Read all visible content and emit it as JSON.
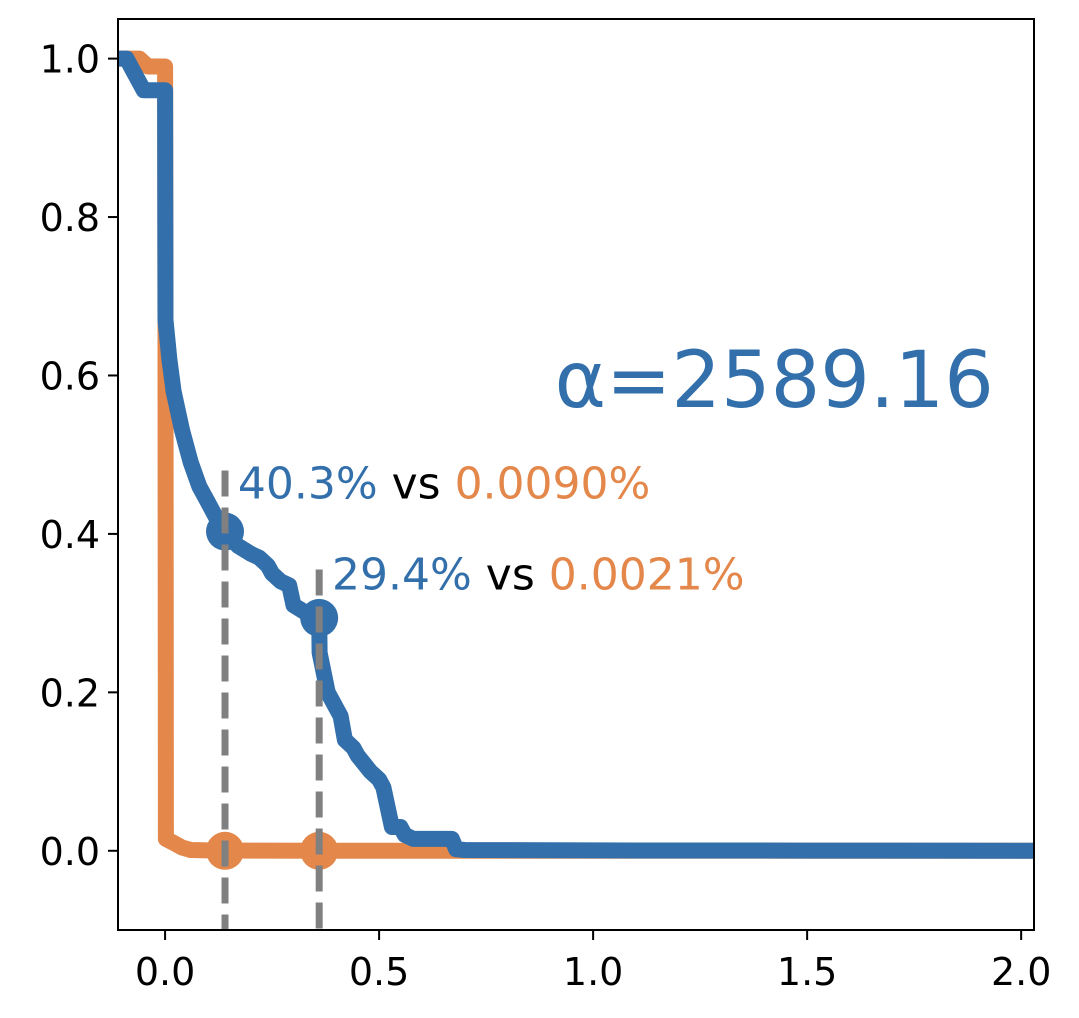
{
  "chart_data": {
    "type": "line",
    "title": "",
    "xlabel": "",
    "ylabel": "",
    "xlim": [
      -0.11,
      2.03
    ],
    "ylim": [
      -0.1,
      1.05
    ],
    "xticks": [
      0.0,
      0.5,
      1.0,
      1.5,
      2.0
    ],
    "xtick_labels": [
      "0.0",
      "0.5",
      "1.0",
      "1.5",
      "2.0"
    ],
    "yticks": [
      0.0,
      0.2,
      0.4,
      0.6,
      0.8,
      1.0
    ],
    "ytick_labels": [
      "0.0",
      "0.2",
      "0.4",
      "0.6",
      "0.8",
      "1.0"
    ],
    "grid": false,
    "colors": {
      "blue": "#3370ab",
      "orange": "#e3874a",
      "dashed": "#808080",
      "text": "#000000"
    },
    "series": [
      {
        "color": "#3370ab",
        "x": [
          -0.11,
          -0.09,
          -0.07,
          -0.05,
          -0.03,
          -0.01,
          0.0,
          0.001,
          0.01,
          0.02,
          0.04,
          0.06,
          0.08,
          0.1,
          0.12,
          0.14,
          0.17,
          0.2,
          0.22,
          0.24,
          0.25,
          0.27,
          0.29,
          0.3,
          0.33,
          0.36,
          0.361,
          0.38,
          0.4,
          0.41,
          0.42,
          0.44,
          0.45,
          0.48,
          0.5,
          0.51,
          0.53,
          0.55,
          0.56,
          0.58,
          0.6,
          0.62,
          0.65,
          0.67,
          0.68,
          0.7,
          1.0,
          1.5,
          2.03
        ],
        "y": [
          1.0,
          1.0,
          0.98,
          0.96,
          0.96,
          0.96,
          0.96,
          0.67,
          0.62,
          0.58,
          0.53,
          0.49,
          0.46,
          0.44,
          0.42,
          0.403,
          0.385,
          0.375,
          0.37,
          0.36,
          0.35,
          0.34,
          0.335,
          0.31,
          0.3,
          0.294,
          0.25,
          0.2,
          0.18,
          0.17,
          0.14,
          0.13,
          0.12,
          0.1,
          0.09,
          0.08,
          0.03,
          0.03,
          0.02,
          0.015,
          0.015,
          0.015,
          0.015,
          0.015,
          0.002,
          0.001,
          0.0005,
          0.0002,
          0.0
        ]
      },
      {
        "color": "#e3874a",
        "x": [
          -0.11,
          -0.08,
          -0.06,
          -0.04,
          -0.02,
          -0.005,
          0.0,
          0.001,
          0.002,
          0.02,
          0.04,
          0.06,
          0.1,
          0.2,
          0.4,
          0.7,
          1.0,
          2.03
        ],
        "y": [
          1.0,
          1.0,
          1.0,
          0.99,
          0.99,
          0.99,
          0.99,
          0.65,
          0.015,
          0.01,
          0.004,
          0.001,
          0.0005,
          0.0002,
          0.0001,
          0.0,
          0.0,
          0.0
        ]
      }
    ],
    "markers": [
      {
        "x": 0.14,
        "y": 0.403,
        "color": "#3370ab"
      },
      {
        "x": 0.36,
        "y": 0.294,
        "color": "#3370ab"
      },
      {
        "x": 0.14,
        "y": 0.0,
        "color": "#e3874a"
      },
      {
        "x": 0.36,
        "y": 0.0,
        "color": "#e3874a"
      }
    ],
    "vlines": [
      {
        "x": 0.14,
        "ymax": 0.48
      },
      {
        "x": 0.36,
        "ymax": 0.355
      }
    ],
    "annotations": [
      {
        "x": 0.17,
        "y": 0.445,
        "blue_text": "40.3%",
        "mid_text": " vs ",
        "orange_text": "0.0090%"
      },
      {
        "x": 0.39,
        "y": 0.33,
        "blue_text": "29.4%",
        "mid_text": " vs ",
        "orange_text": "0.0021%"
      }
    ],
    "alpha_label": {
      "text": "α=2589.16",
      "x": 0.91,
      "y": 0.56
    }
  }
}
